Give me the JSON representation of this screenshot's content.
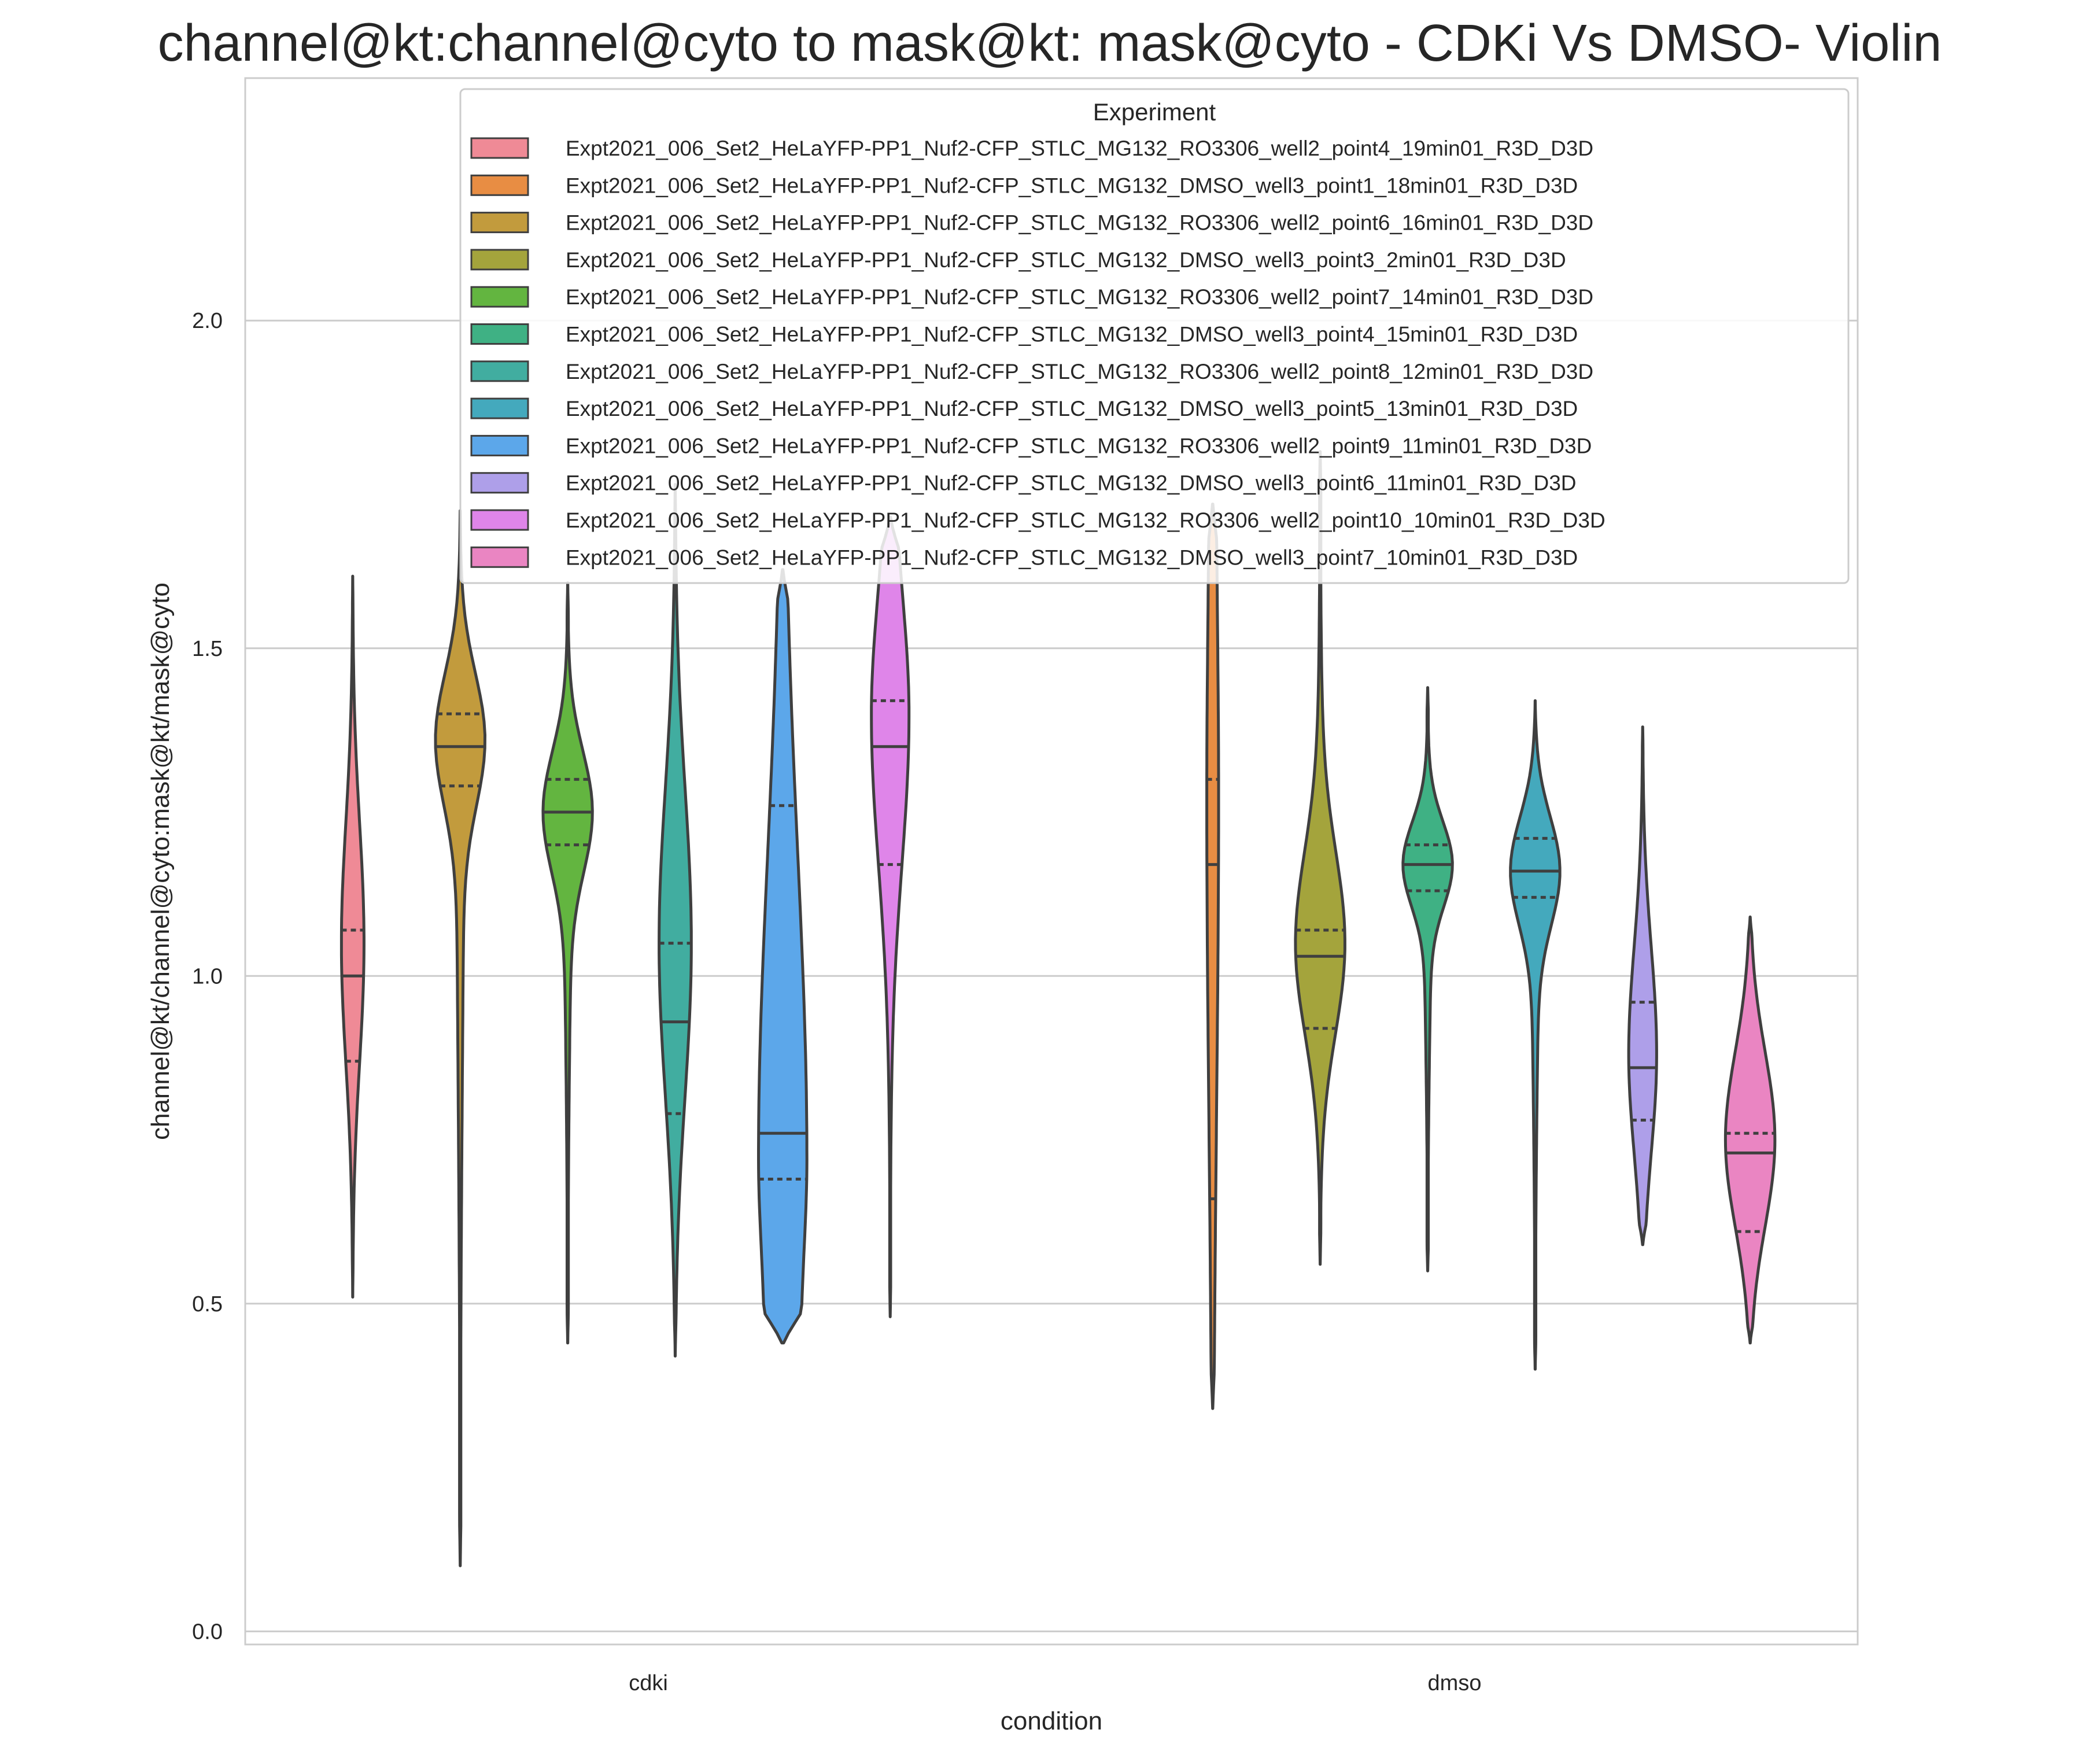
{
  "chart_data": {
    "type": "violin",
    "title": "channel@kt:channel@cyto to mask@kt: mask@cyto - CDKi Vs DMSO- Violin",
    "xlabel": "condition",
    "ylabel": "channel@kt/channel@cyto:mask@kt/mask@cyto",
    "categories": [
      "cdki",
      "dmso"
    ],
    "ylim": [
      -0.02,
      2.37
    ],
    "yticks": [
      0.0,
      0.5,
      1.0,
      1.5,
      2.0
    ],
    "ytick_labels": [
      "0.0",
      "0.5",
      "1.0",
      "1.5",
      "2.0"
    ],
    "grid": "y",
    "legend": {
      "title": "Experiment",
      "placement": "top-right"
    },
    "series": [
      {
        "name": "Expt2021_006_Set2_HeLaYFP-PP1_Nuf2-CFP_STLC_MG132_RO3306_well2_point4_19min01_R3D_D3D",
        "color": "#ef8a96",
        "category": "cdki",
        "min": 0.51,
        "max": 1.61,
        "q1": 0.87,
        "median": 1.0,
        "q3": 1.07,
        "mode": 1.05,
        "width": 0.42
      },
      {
        "name": "Expt2021_006_Set2_HeLaYFP-PP1_Nuf2-CFP_STLC_MG132_DMSO_well3_point1_18min01_R3D_D3D",
        "color": "#e88d43",
        "category": "dmso",
        "min": 0.34,
        "max": 1.72,
        "q1": 0.66,
        "median": 1.17,
        "q3": 1.3,
        "mode": 1.28,
        "width": 0.22
      },
      {
        "name": "Expt2021_006_Set2_HeLaYFP-PP1_Nuf2-CFP_STLC_MG132_RO3306_well2_point6_16min01_R3D_D3D",
        "color": "#c29b3d",
        "category": "cdki",
        "min": 0.1,
        "max": 1.71,
        "q1": 1.29,
        "median": 1.35,
        "q3": 1.4,
        "mode": 1.36,
        "width": 0.92
      },
      {
        "name": "Expt2021_006_Set2_HeLaYFP-PP1_Nuf2-CFP_STLC_MG132_DMSO_well3_point3_2min01_R3D_D3D",
        "color": "#a4a43c",
        "category": "dmso",
        "min": 0.56,
        "max": 1.8,
        "q1": 0.92,
        "median": 1.03,
        "q3": 1.07,
        "mode": 1.05,
        "width": 0.92
      },
      {
        "name": "Expt2021_006_Set2_HeLaYFP-PP1_Nuf2-CFP_STLC_MG132_RO3306_well2_point7_14min01_R3D_D3D",
        "color": "#63b540",
        "category": "cdki",
        "min": 0.44,
        "max": 1.6,
        "q1": 1.2,
        "median": 1.25,
        "q3": 1.3,
        "mode": 1.25,
        "width": 0.92
      },
      {
        "name": "Expt2021_006_Set2_HeLaYFP-PP1_Nuf2-CFP_STLC_MG132_DMSO_well3_point4_15min01_R3D_D3D",
        "color": "#3fb184",
        "category": "dmso",
        "min": 0.55,
        "max": 1.44,
        "q1": 1.13,
        "median": 1.17,
        "q3": 1.2,
        "mode": 1.17,
        "width": 0.92
      },
      {
        "name": "Expt2021_006_Set2_HeLaYFP-PP1_Nuf2-CFP_STLC_MG132_RO3306_well2_point8_12min01_R3D_D3D",
        "color": "#41ada0",
        "category": "cdki",
        "min": 0.42,
        "max": 1.75,
        "q1": 0.79,
        "median": 0.93,
        "q3": 1.05,
        "mode": 1.05,
        "width": 0.6
      },
      {
        "name": "Expt2021_006_Set2_HeLaYFP-PP1_Nuf2-CFP_STLC_MG132_DMSO_well3_point5_13min01_R3D_D3D",
        "color": "#44a9bd",
        "category": "dmso",
        "min": 0.4,
        "max": 1.42,
        "q1": 1.12,
        "median": 1.16,
        "q3": 1.21,
        "mode": 1.16,
        "width": 0.92
      },
      {
        "name": "Expt2021_006_Set2_HeLaYFP-PP1_Nuf2-CFP_STLC_MG132_RO3306_well2_point9_11min01_R3D_D3D",
        "color": "#5ca7ea",
        "category": "cdki",
        "min": 0.44,
        "max": 1.62,
        "q1": 0.69,
        "median": 0.76,
        "q3": 1.26,
        "mode": 0.72,
        "width": 0.9
      },
      {
        "name": "Expt2021_006_Set2_HeLaYFP-PP1_Nuf2-CFP_STLC_MG132_DMSO_well3_point6_11min01_R3D_D3D",
        "color": "#ae9fe9",
        "category": "dmso",
        "min": 0.59,
        "max": 1.38,
        "q1": 0.78,
        "median": 0.86,
        "q3": 0.96,
        "mode": 0.88,
        "width": 0.52
      },
      {
        "name": "Expt2021_006_Set2_HeLaYFP-PP1_Nuf2-CFP_STLC_MG132_RO3306_well2_point10_10min01_R3D_D3D",
        "color": "#df85e9",
        "category": "cdki",
        "min": 0.48,
        "max": 1.7,
        "q1": 1.17,
        "median": 1.35,
        "q3": 1.42,
        "mode": 1.4,
        "width": 0.7
      },
      {
        "name": "Expt2021_006_Set2_HeLaYFP-PP1_Nuf2-CFP_STLC_MG132_DMSO_well3_point7_10min01_R3D_D3D",
        "color": "#ea85c2",
        "category": "dmso",
        "min": 0.44,
        "max": 1.09,
        "q1": 0.61,
        "median": 0.73,
        "q3": 0.76,
        "mode": 0.75,
        "width": 0.92
      }
    ]
  }
}
